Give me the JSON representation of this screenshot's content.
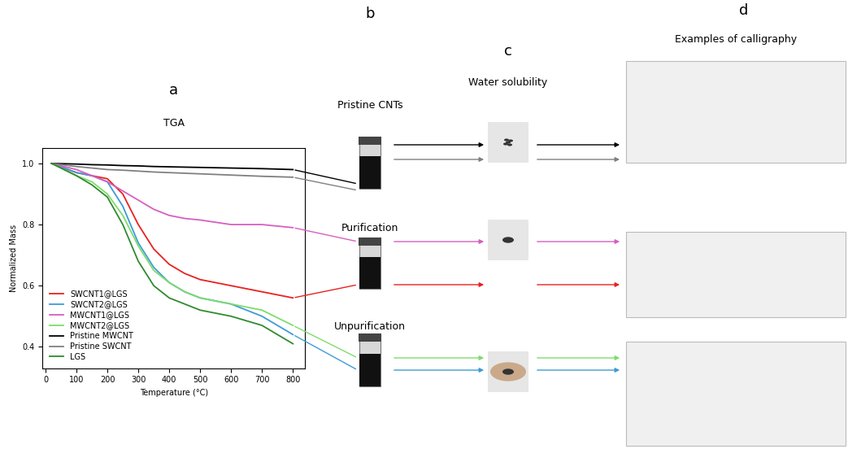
{
  "chart_data": {
    "type": "line",
    "panel": "a",
    "title": "TGA",
    "x_label": "Temperature (°C)",
    "y_label": "Normalized Mass",
    "xlim": [
      -10,
      840
    ],
    "ylim": [
      0.33,
      1.05
    ],
    "xticks": [
      0,
      100,
      200,
      300,
      400,
      500,
      600,
      700,
      800
    ],
    "yticks": [
      0.4,
      0.6,
      0.8,
      1.0
    ],
    "legend": "lower left",
    "x": [
      20,
      100,
      150,
      200,
      250,
      300,
      350,
      400,
      450,
      500,
      600,
      700,
      800
    ],
    "series": [
      {
        "name": "SWCNT1@LGS",
        "color": "#e8221f",
        "values": [
          1.0,
          0.97,
          0.96,
          0.95,
          0.9,
          0.8,
          0.72,
          0.67,
          0.64,
          0.62,
          0.6,
          0.58,
          0.56
        ]
      },
      {
        "name": "SWCNT2@LGS",
        "color": "#3d9bd8",
        "values": [
          1.0,
          0.97,
          0.96,
          0.94,
          0.86,
          0.74,
          0.66,
          0.61,
          0.58,
          0.56,
          0.54,
          0.5,
          0.44
        ]
      },
      {
        "name": "MWCNT1@LGS",
        "color": "#d65fc0",
        "values": [
          1.0,
          0.98,
          0.96,
          0.94,
          0.91,
          0.88,
          0.85,
          0.83,
          0.82,
          0.815,
          0.8,
          0.8,
          0.79
        ]
      },
      {
        "name": "MWCNT2@LGS",
        "color": "#7ddc6a",
        "values": [
          1.0,
          0.96,
          0.94,
          0.9,
          0.83,
          0.73,
          0.65,
          0.61,
          0.58,
          0.56,
          0.54,
          0.52,
          0.47
        ]
      },
      {
        "name": "Pristine MWCNT",
        "color": "#000000",
        "values": [
          1.0,
          0.998,
          0.996,
          0.995,
          0.993,
          0.992,
          0.99,
          0.989,
          0.988,
          0.987,
          0.985,
          0.983,
          0.98
        ]
      },
      {
        "name": "Pristine SWCNT",
        "color": "#808080",
        "values": [
          1.0,
          0.99,
          0.985,
          0.98,
          0.978,
          0.975,
          0.972,
          0.97,
          0.968,
          0.966,
          0.962,
          0.958,
          0.955
        ]
      },
      {
        "name": "LGS",
        "color": "#2e8b2e",
        "values": [
          1.0,
          0.96,
          0.93,
          0.89,
          0.8,
          0.68,
          0.6,
          0.56,
          0.54,
          0.52,
          0.5,
          0.47,
          0.41
        ]
      }
    ]
  },
  "panel_b": {
    "panel": "b",
    "rows": [
      {
        "label": "Pristine CNTs",
        "series": [
          "Pristine MWCNT",
          "Pristine SWCNT"
        ]
      },
      {
        "label": "Purification",
        "series": [
          "MWCNT1@LGS",
          "SWCNT1@LGS"
        ]
      },
      {
        "label": "Unpurification",
        "series": [
          "MWCNT2@LGS",
          "SWCNT2@LGS"
        ]
      }
    ]
  },
  "panel_c": {
    "panel": "c",
    "title": "Water solubility"
  },
  "panel_d": {
    "panel": "d",
    "title": "Examples of calligraphy"
  }
}
